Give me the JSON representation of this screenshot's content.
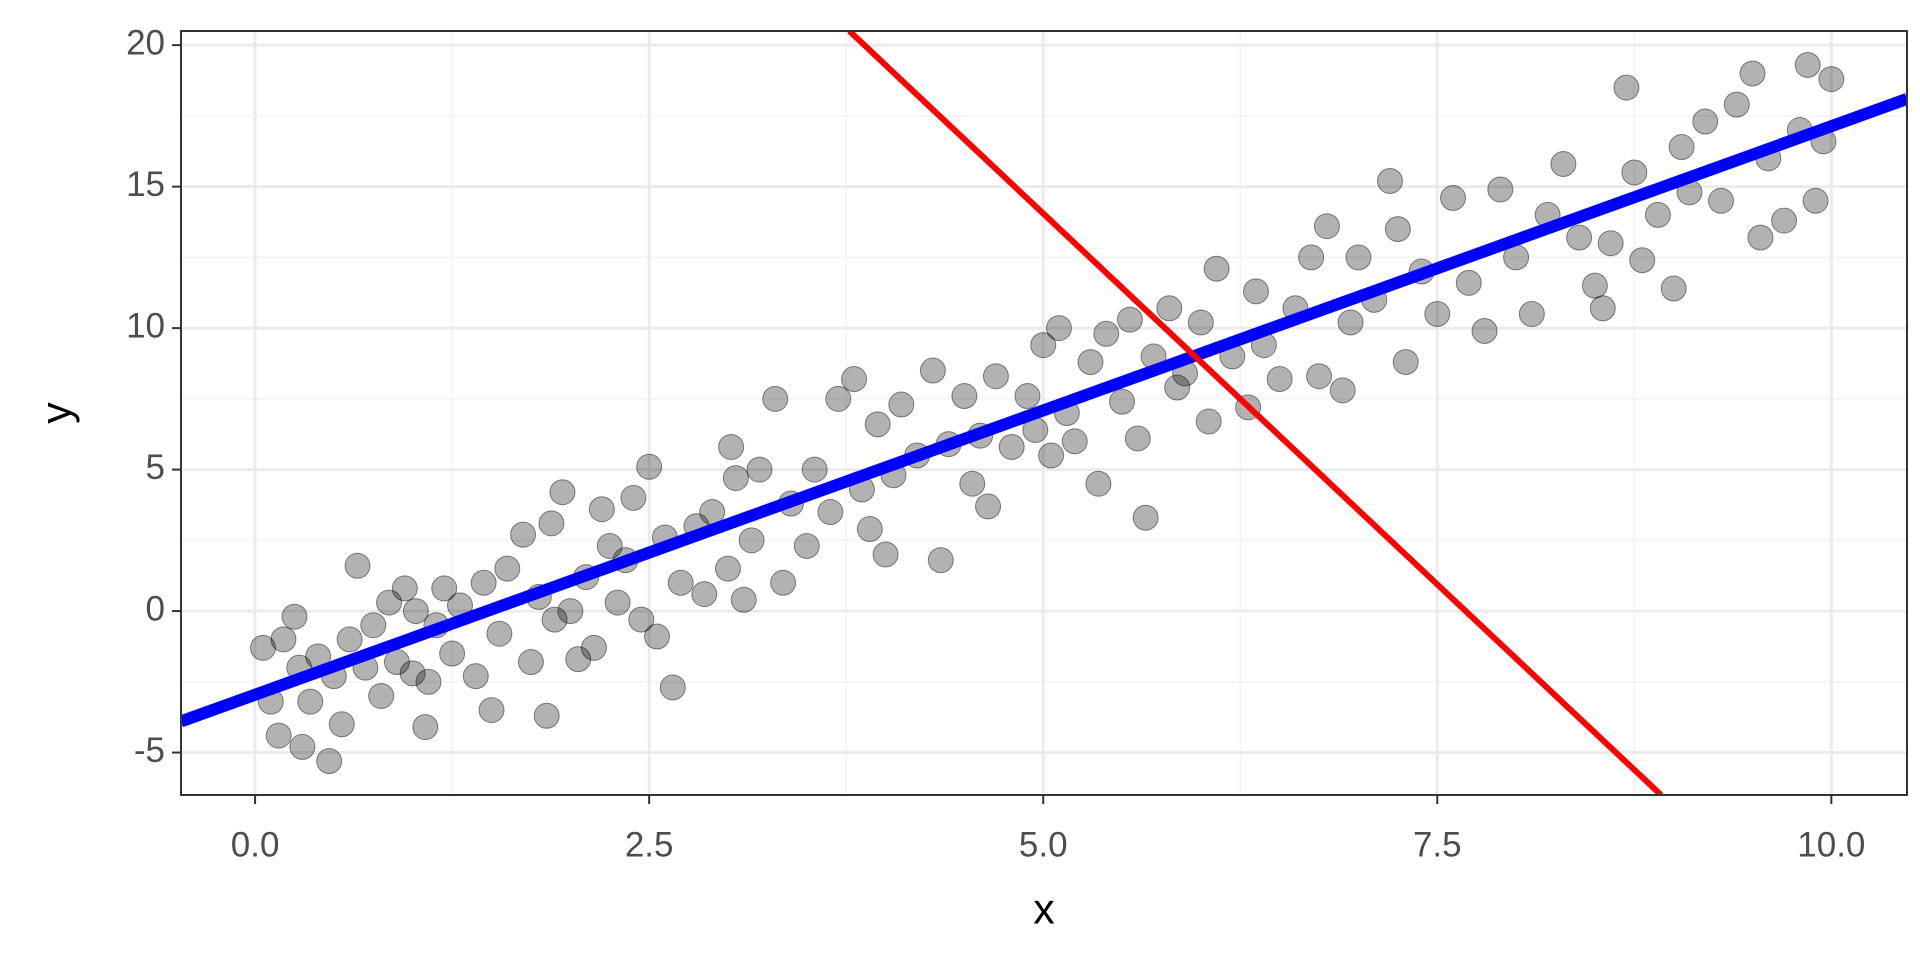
{
  "chart_data": {
    "type": "scatter",
    "x_label": "x",
    "y_label": "y",
    "xlim": [
      -0.47,
      10.48
    ],
    "ylim": [
      -6.5,
      20.5
    ],
    "xticks": [
      {
        "value": 0,
        "label": "0.0"
      },
      2.5,
      {
        "value": 5,
        "label": "5.0"
      },
      7.5,
      {
        "value": 10,
        "label": "10.0"
      }
    ],
    "yticks": [
      -5,
      0,
      5,
      10,
      15,
      20
    ],
    "minor_xticks": [
      1.25,
      3.75,
      6.25,
      8.75
    ],
    "minor_yticks": [
      -2.5,
      2.5,
      7.5,
      12.5,
      17.5
    ],
    "grid": true,
    "points": {
      "color": "#000000",
      "x": [
        0.05,
        0.1,
        0.15,
        0.18,
        0.25,
        0.28,
        0.3,
        0.35,
        0.4,
        0.47,
        0.5,
        0.55,
        0.6,
        0.65,
        0.7,
        0.75,
        0.8,
        0.85,
        0.9,
        0.95,
        1.0,
        1.02,
        1.08,
        1.1,
        1.15,
        1.2,
        1.25,
        1.3,
        1.4,
        1.45,
        1.5,
        1.55,
        1.6,
        1.7,
        1.75,
        1.8,
        1.85,
        1.88,
        1.9,
        1.95,
        2.0,
        2.05,
        2.1,
        2.15,
        2.2,
        2.25,
        2.3,
        2.35,
        2.4,
        2.45,
        2.5,
        2.55,
        2.6,
        2.65,
        2.7,
        2.8,
        2.85,
        2.9,
        3.0,
        3.02,
        3.05,
        3.1,
        3.15,
        3.2,
        3.3,
        3.35,
        3.4,
        3.5,
        3.55,
        3.65,
        3.7,
        3.8,
        3.85,
        3.9,
        3.95,
        4.0,
        4.05,
        4.1,
        4.2,
        4.3,
        4.35,
        4.4,
        4.5,
        4.55,
        4.6,
        4.65,
        4.7,
        4.8,
        4.9,
        4.95,
        5.0,
        5.05,
        5.1,
        5.15,
        5.2,
        5.3,
        5.35,
        5.4,
        5.5,
        5.55,
        5.6,
        5.65,
        5.7,
        5.8,
        5.85,
        5.9,
        6.0,
        6.05,
        6.1,
        6.2,
        6.3,
        6.35,
        6.4,
        6.5,
        6.6,
        6.7,
        6.75,
        6.8,
        6.9,
        6.95,
        7.0,
        7.1,
        7.2,
        7.25,
        7.3,
        7.4,
        7.5,
        7.6,
        7.7,
        7.8,
        7.9,
        8.0,
        8.1,
        8.2,
        8.3,
        8.4,
        8.5,
        8.55,
        8.6,
        8.7,
        8.75,
        8.8,
        8.9,
        9.0,
        9.05,
        9.1,
        9.2,
        9.3,
        9.4,
        9.5,
        9.55,
        9.6,
        9.7,
        9.8,
        9.85,
        9.9,
        9.95,
        10.0
      ],
      "y": [
        -1.3,
        -3.2,
        -4.4,
        -1.0,
        -0.2,
        -2.0,
        -4.8,
        -3.2,
        -1.6,
        -5.3,
        -2.3,
        -4.0,
        -1.0,
        1.6,
        -2.0,
        -0.5,
        -3.0,
        0.3,
        -1.8,
        0.8,
        -2.2,
        0.0,
        -4.1,
        -2.5,
        -0.5,
        0.8,
        -1.5,
        0.2,
        -2.3,
        1.0,
        -3.5,
        -0.8,
        1.5,
        2.7,
        -1.8,
        0.5,
        -3.7,
        3.1,
        -0.3,
        4.2,
        0.0,
        -1.7,
        1.2,
        -1.3,
        3.6,
        2.3,
        0.3,
        1.8,
        4.0,
        -0.3,
        5.1,
        -0.9,
        2.6,
        -2.7,
        1.0,
        3.0,
        0.6,
        3.5,
        1.5,
        5.8,
        4.7,
        0.4,
        2.5,
        5.0,
        7.5,
        1.0,
        3.8,
        2.3,
        5.0,
        3.5,
        7.5,
        8.2,
        4.3,
        2.9,
        6.6,
        2.0,
        4.8,
        7.3,
        5.5,
        8.5,
        1.8,
        5.9,
        7.6,
        4.5,
        6.2,
        3.7,
        8.3,
        5.8,
        7.6,
        6.4,
        9.4,
        5.5,
        10.0,
        7.0,
        6.0,
        8.8,
        4.5,
        9.8,
        7.4,
        10.3,
        6.1,
        3.3,
        9.0,
        10.7,
        7.9,
        8.4,
        10.2,
        6.7,
        12.1,
        9.0,
        7.2,
        11.3,
        9.4,
        8.2,
        10.7,
        12.5,
        8.3,
        13.6,
        7.8,
        10.2,
        12.5,
        11.0,
        15.2,
        13.5,
        8.8,
        12.0,
        10.5,
        14.6,
        11.6,
        9.9,
        14.9,
        12.5,
        10.5,
        14.0,
        15.8,
        13.2,
        11.5,
        10.7,
        13.0,
        18.5,
        15.5,
        12.4,
        14.0,
        11.4,
        16.4,
        14.8,
        17.3,
        14.5,
        17.9,
        19.0,
        13.2,
        16.0,
        13.8,
        17.0,
        19.3,
        14.5,
        16.6,
        18.8
      ]
    },
    "lines": [
      {
        "color": "#0000ff",
        "x": [
          -0.47,
          10.48
        ],
        "y": [
          -3.9,
          18.1
        ]
      },
      {
        "color": "#ff0000",
        "x": [
          3.77,
          8.92
        ],
        "y": [
          20.5,
          -6.5
        ]
      }
    ]
  }
}
